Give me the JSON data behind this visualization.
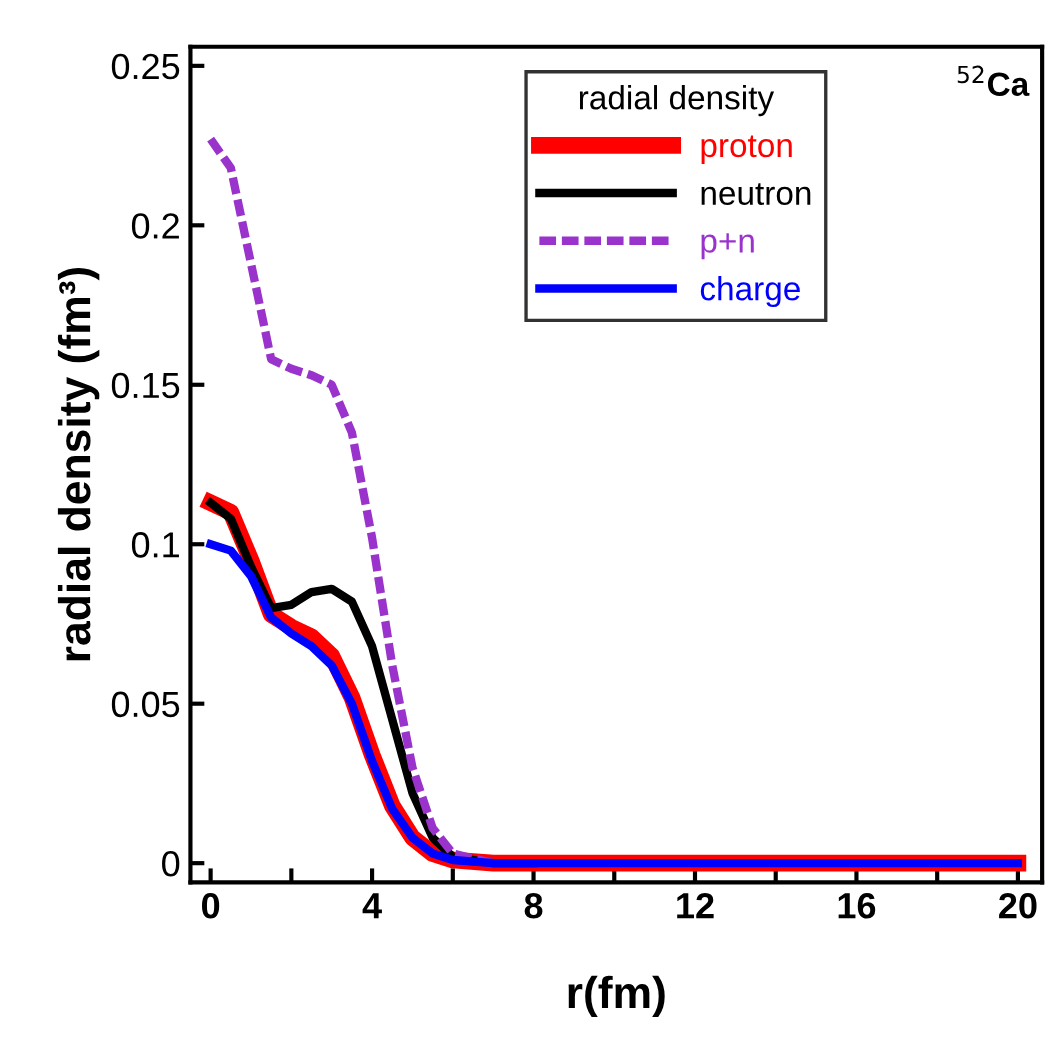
{
  "chart_data": {
    "type": "line",
    "xlabel": "r(fm)",
    "ylabel": "radial density (fm³)",
    "legend_title": "radial density",
    "annotations": [
      "$^{52}$Ca"
    ],
    "x": [
      0,
      0.5,
      1,
      1.5,
      2,
      2.5,
      3,
      3.5,
      4,
      4.5,
      5,
      5.5,
      6,
      7,
      8,
      10,
      12,
      14,
      16,
      18,
      20
    ],
    "series": [
      {
        "name": "proton",
        "color": "#ff0000",
        "values": [
          0.113,
          0.11,
          0.095,
          0.078,
          0.074,
          0.071,
          0.065,
          0.052,
          0.034,
          0.018,
          0.008,
          0.003,
          0.001,
          0,
          0,
          0,
          0,
          0,
          0,
          0,
          0
        ]
      },
      {
        "name": "neutron",
        "color": "#000000",
        "values": [
          0.113,
          0.108,
          0.093,
          0.08,
          0.081,
          0.085,
          0.086,
          0.082,
          0.068,
          0.045,
          0.022,
          0.008,
          0.002,
          0,
          0,
          null,
          null,
          null,
          null,
          null,
          null
        ]
      },
      {
        "name": "p+n",
        "color": "#9933cc",
        "line_style": "dashed",
        "values": [
          0.227,
          0.218,
          0.188,
          0.158,
          0.155,
          0.153,
          0.15,
          0.135,
          0.102,
          0.062,
          0.03,
          0.011,
          0.003,
          0,
          null,
          null,
          null,
          null,
          null,
          null,
          null
        ]
      },
      {
        "name": "charge",
        "color": "#0000ff",
        "values": [
          0.1,
          0.098,
          0.09,
          0.077,
          0.072,
          0.068,
          0.062,
          0.05,
          0.032,
          0.017,
          0.008,
          0.003,
          0.001,
          0,
          0,
          0,
          0,
          0,
          0,
          0,
          0
        ]
      }
    ],
    "xlim": [
      -0.5,
      20.6
    ],
    "ylim": [
      -0.006,
      0.256
    ],
    "xticks": [
      0,
      {
        "value": 2,
        "label": null
      },
      4,
      {
        "value": 6,
        "label": null
      },
      8,
      {
        "value": 10,
        "label": null
      },
      12,
      {
        "value": 14,
        "label": null
      },
      16,
      {
        "value": 18,
        "label": null
      },
      20
    ],
    "yticks": [
      0,
      0.05,
      0.1,
      0.15,
      0.2,
      0.25
    ],
    "grid": false,
    "legend": "top",
    "marker": "none"
  }
}
